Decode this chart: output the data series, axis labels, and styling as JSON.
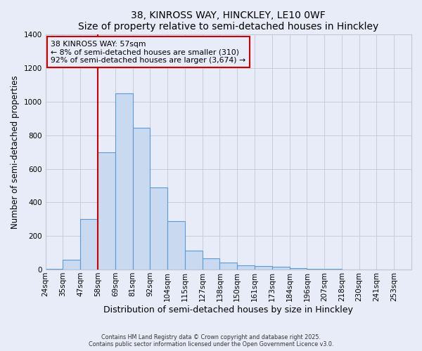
{
  "title": "38, KINROSS WAY, HINCKLEY, LE10 0WF",
  "subtitle": "Size of property relative to semi-detached houses in Hinckley",
  "xlabel": "Distribution of semi-detached houses by size in Hinckley",
  "ylabel": "Number of semi-detached properties",
  "bin_labels": [
    "24sqm",
    "35sqm",
    "47sqm",
    "58sqm",
    "69sqm",
    "81sqm",
    "92sqm",
    "104sqm",
    "115sqm",
    "127sqm",
    "138sqm",
    "150sqm",
    "161sqm",
    "173sqm",
    "184sqm",
    "196sqm",
    "207sqm",
    "218sqm",
    "230sqm",
    "241sqm",
    "253sqm"
  ],
  "bar_heights": [
    5,
    60,
    300,
    700,
    1050,
    845,
    490,
    290,
    115,
    65,
    40,
    25,
    20,
    15,
    10,
    5,
    3,
    2,
    1,
    0,
    0
  ],
  "bar_color": "#c8d9f0",
  "bar_edge_color": "#5b9bd5",
  "ylim": [
    0,
    1400
  ],
  "yticks": [
    0,
    200,
    400,
    600,
    800,
    1000,
    1200,
    1400
  ],
  "marker_bin": 3,
  "marker_color": "#cc0000",
  "annotation_title": "38 KINROSS WAY: 57sqm",
  "annotation_line1": "← 8% of semi-detached houses are smaller (310)",
  "annotation_line2": "92% of semi-detached houses are larger (3,674) →",
  "annotation_box_color": "#cc0000",
  "bg_color": "#e8ecf8",
  "grid_color": "#c0c8d8",
  "footer1": "Contains HM Land Registry data © Crown copyright and database right 2025.",
  "footer2": "Contains public sector information licensed under the Open Government Licence v3.0."
}
